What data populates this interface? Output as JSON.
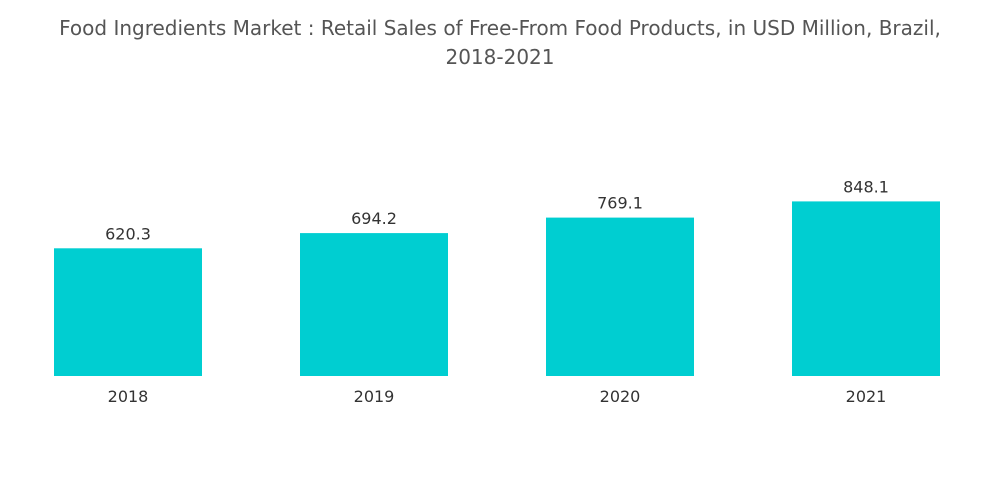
{
  "title_lines": [
    "Food Ingredients Market : Retail Sales of Free-From Food Products, in USD Million, Brazil,",
    "2018-2021"
  ],
  "colors": {
    "bar": "#00CED1",
    "baseline": "#cccccc"
  },
  "chart_data": {
    "type": "bar",
    "title": "Food Ingredients Market : Retail Sales of Free-From Food Products, in USD Million, Brazil, 2018-2021",
    "categories": [
      "2018",
      "2019",
      "2020",
      "2021"
    ],
    "values": [
      620.3,
      694.2,
      769.1,
      848.1
    ],
    "data_labels": [
      "620.3",
      "694.2",
      "769.1",
      "848.1"
    ],
    "xlabel": "",
    "ylabel": "",
    "grid": false,
    "legend": "none"
  }
}
